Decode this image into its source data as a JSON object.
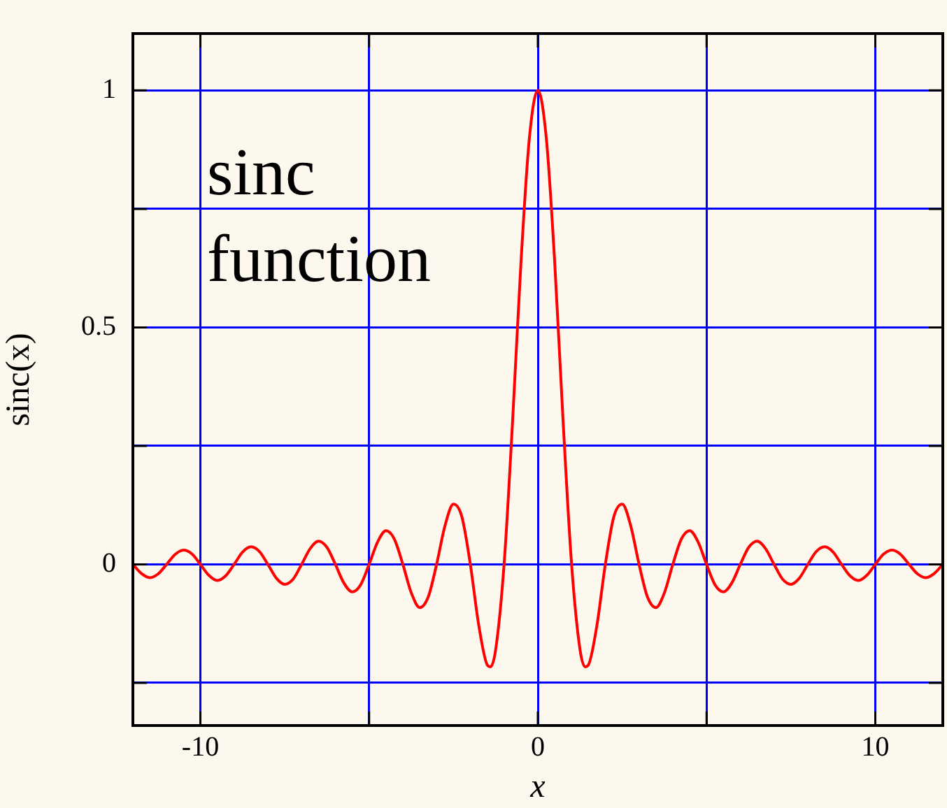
{
  "chart_data": {
    "type": "line",
    "xlabel": "x",
    "ylabel": "sinc(x)",
    "annotations": [
      "sinc function"
    ],
    "xlim": [
      -12,
      12
    ],
    "ylim": [
      -0.34,
      1.12
    ],
    "xticks": [
      -10,
      {
        "value": -5,
        "label": null
      },
      0,
      {
        "value": 5,
        "label": null
      },
      10
    ],
    "yticks": [
      {
        "value": -0.25,
        "label": null
      },
      0,
      0.5,
      {
        "value": 0.25,
        "label": null
      },
      {
        "value": 0.75,
        "label": null
      },
      1
    ],
    "grid": true,
    "legend": false,
    "marker": "none",
    "line_style": "solid",
    "x": [
      -12,
      -11.75,
      -11.5,
      -11.25,
      -11,
      -10.75,
      -10.5,
      -10.25,
      -10,
      -9.75,
      -9.5,
      -9.25,
      -9,
      -8.75,
      -8.5,
      -8.25,
      -8,
      -7.75,
      -7.5,
      -7.25,
      -7,
      -6.75,
      -6.5,
      -6.25,
      -6,
      -5.75,
      -5.5,
      -5.25,
      -5,
      -4.75,
      -4.5,
      -4.25,
      -4,
      -3.75,
      -3.5,
      -3.25,
      -3,
      -2.75,
      -2.5,
      -2.25,
      -2,
      -1.75,
      -1.5,
      -1.4,
      -1.25,
      -1,
      -0.75,
      -0.5,
      -0.25,
      0,
      0.25,
      0.5,
      0.75,
      1,
      1.25,
      1.4,
      1.5,
      1.75,
      2,
      2.25,
      2.5,
      2.75,
      3,
      3.25,
      3.5,
      3.75,
      4,
      4.25,
      4.5,
      4.75,
      5,
      5.25,
      5.5,
      5.75,
      6,
      6.25,
      6.5,
      6.75,
      7,
      7.25,
      7.5,
      7.75,
      8,
      8.25,
      8.5,
      8.75,
      9,
      9.25,
      9.5,
      9.75,
      10,
      10.25,
      10.5,
      10.75,
      11,
      11.25,
      11.5,
      11.75,
      12
    ],
    "series": [
      {
        "color": "#ff0000",
        "values": [
          0,
          -0.019,
          -0.028,
          -0.02,
          0,
          0.021,
          0.03,
          0.022,
          0,
          -0.023,
          -0.034,
          -0.024,
          0,
          0.026,
          0.037,
          0.027,
          0,
          -0.029,
          -0.042,
          -0.031,
          0,
          0.033,
          0.049,
          0.036,
          0,
          -0.039,
          -0.058,
          -0.043,
          0,
          0.047,
          0.071,
          0.053,
          0,
          -0.06,
          -0.091,
          -0.069,
          0,
          0.082,
          0.127,
          0.1,
          0,
          -0.129,
          -0.212,
          -0.216,
          -0.18,
          0,
          0.3,
          0.637,
          0.9,
          1,
          0.9,
          0.637,
          0.3,
          0,
          -0.18,
          -0.216,
          -0.212,
          -0.129,
          0,
          0.1,
          0.127,
          0.082,
          0,
          -0.069,
          -0.091,
          -0.06,
          0,
          0.053,
          0.071,
          0.047,
          0,
          -0.043,
          -0.058,
          -0.039,
          0,
          0.036,
          0.049,
          0.033,
          0,
          -0.031,
          -0.042,
          -0.029,
          0,
          0.027,
          0.037,
          0.026,
          0,
          -0.024,
          -0.034,
          -0.023,
          0,
          0.022,
          0.03,
          0.021,
          0,
          -0.02,
          -0.028,
          -0.019,
          0
        ]
      }
    ]
  }
}
